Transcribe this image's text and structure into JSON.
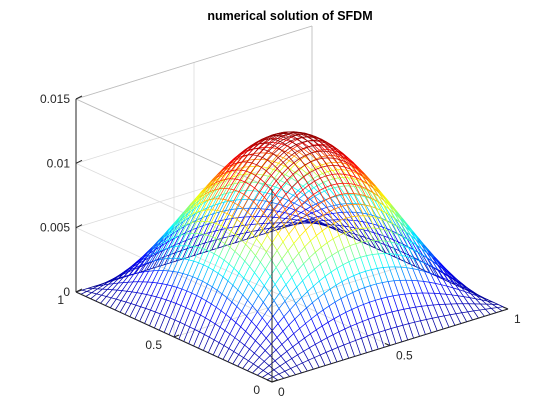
{
  "chart_data": {
    "type": "surface",
    "title": "numerical solution of SFDM",
    "function": "sin(pi*x)*sin(pi*y) scaled to peak",
    "peak_value": 0.0128,
    "xlim": [
      0,
      1
    ],
    "ylim": [
      0,
      1
    ],
    "zlim": [
      0,
      0.015
    ],
    "x_ticks": [
      {
        "value": 0,
        "label": "0"
      },
      {
        "value": 0.5,
        "label": "0.5"
      },
      {
        "value": 1,
        "label": "1"
      }
    ],
    "y_ticks": [
      {
        "value": 0,
        "label": "0"
      },
      {
        "value": 0.5,
        "label": "0.5"
      },
      {
        "value": 1,
        "label": "1"
      }
    ],
    "z_ticks": [
      {
        "value": 0,
        "label": "0"
      },
      {
        "value": 0.005,
        "label": "0.005"
      },
      {
        "value": 0.01,
        "label": "0.01"
      },
      {
        "value": 0.015,
        "label": "0.015"
      }
    ],
    "grid": true,
    "mesh_points": 41,
    "colormap": "jet",
    "colormap_stops": [
      "#00008f",
      "#0000ff",
      "#00ffff",
      "#ffff00",
      "#ff0000",
      "#800000"
    ]
  }
}
